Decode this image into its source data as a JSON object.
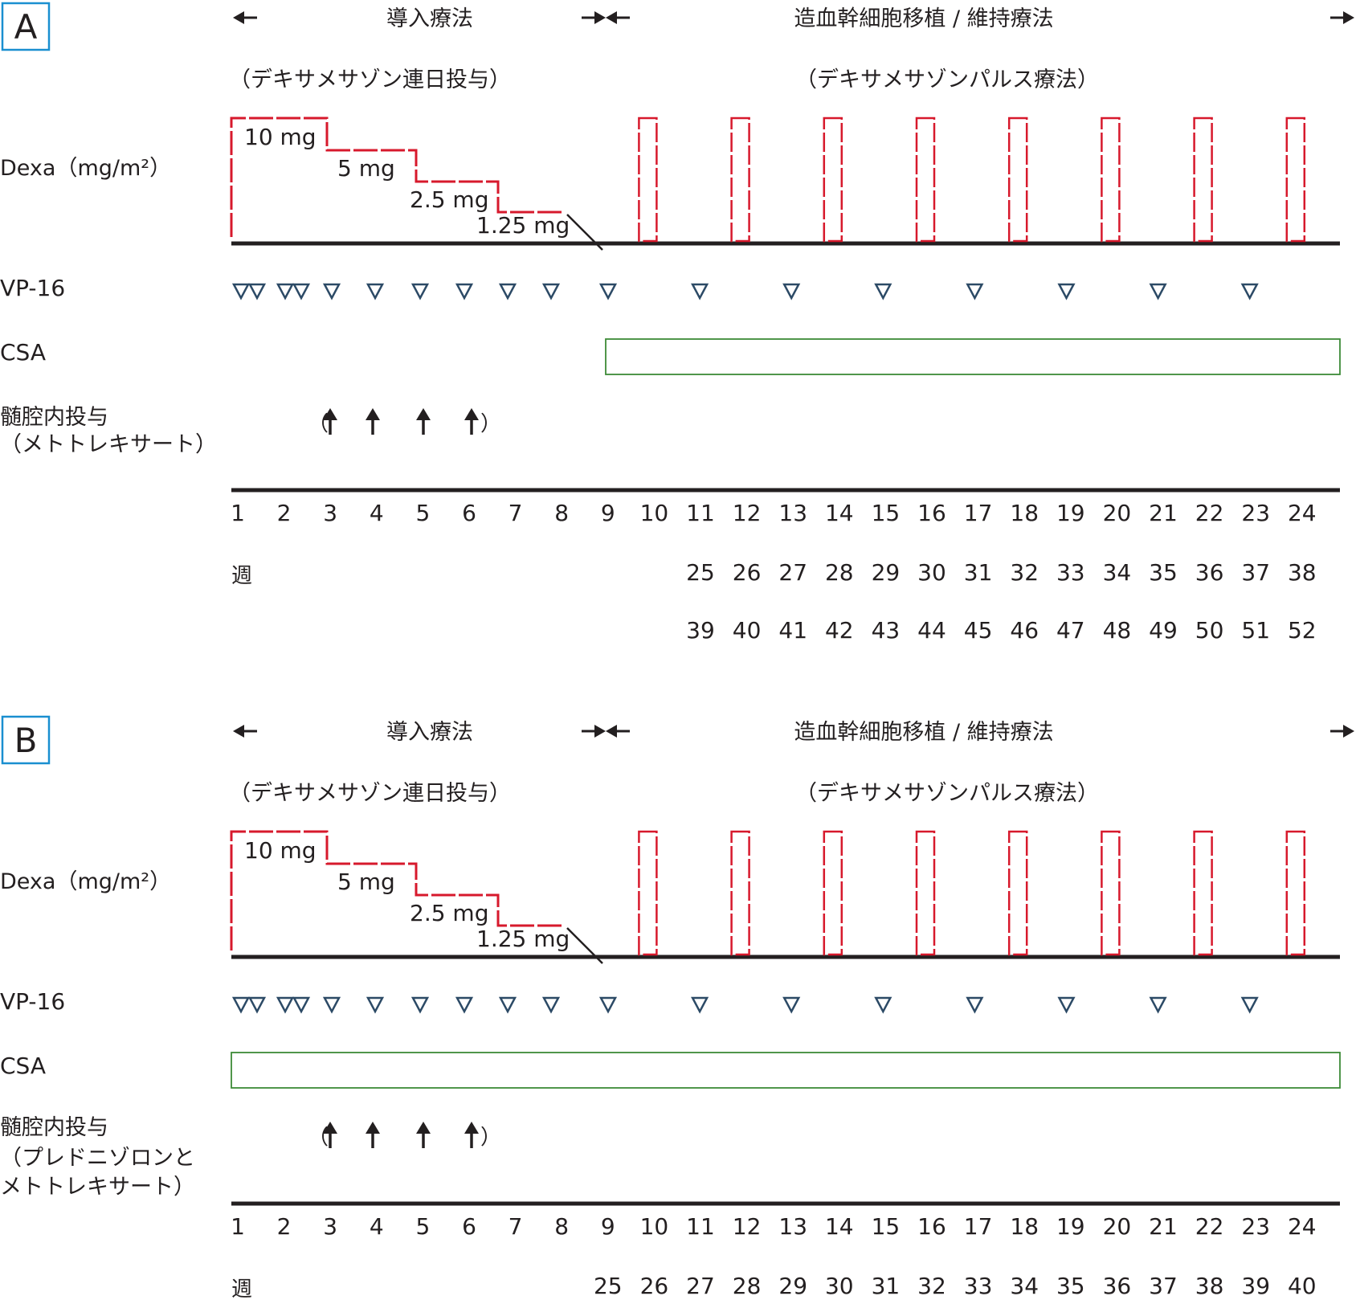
{
  "colors": {
    "text": "#231f20",
    "dexa": "#d7192c",
    "vp16": "#2c4a66",
    "csa": "#3d8b37",
    "panel_label": "#1a8fd0",
    "axis": "#231f20"
  },
  "panels": [
    {
      "key": "A",
      "label": "A",
      "phase_induction": "導入療法",
      "phase_maintenance": "造血幹細胞移植 / 維持療法",
      "sub_induction": "（デキサメサゾン連日投与）",
      "sub_maintenance": "（デキサメサゾンパルス療法）",
      "dexa_label": "Dexa（mg/m²）",
      "dexa_steps": [
        {
          "label": "10 mg",
          "start_week": 1,
          "end_week": 3,
          "level_mg": 10
        },
        {
          "label": "5 mg",
          "start_week": 3,
          "end_week": 5,
          "level_mg": 5
        },
        {
          "label": "2.5 mg",
          "start_week": 5,
          "end_week": 6.8,
          "level_mg": 2.5
        },
        {
          "label": "1.25 mg",
          "start_week": 6.8,
          "end_week": 8.3,
          "level_mg": 1.25
        }
      ],
      "dexa_pulse_weeks": [
        10,
        12,
        14,
        16,
        18,
        20,
        22,
        24
      ],
      "vp16_label": "VP-16",
      "vp16_weeks": [
        1,
        1.35,
        1.95,
        2.3,
        3,
        4,
        5,
        6,
        7,
        8,
        9,
        11,
        13,
        15,
        17,
        19,
        21,
        23
      ],
      "csa_label": "CSA",
      "csa_start_week": 9,
      "it_label_lines": [
        "髄腔内投与",
        "（メトトレキサート）"
      ],
      "it_weeks": [
        3,
        4,
        5,
        6
      ],
      "bracket_open": "（",
      "bracket_close": "）",
      "week_label": "週",
      "week_rows": [
        {
          "start_week": 1,
          "values": [
            "1",
            "2",
            "3",
            "4",
            "5",
            "6",
            "7",
            "8",
            "9",
            "10",
            "11",
            "12",
            "13",
            "14",
            "15",
            "16",
            "17",
            "18",
            "19",
            "20",
            "21",
            "22",
            "23",
            "24"
          ]
        },
        {
          "start_week": 11,
          "values": [
            "25",
            "26",
            "27",
            "28",
            "29",
            "30",
            "31",
            "32",
            "33",
            "34",
            "35",
            "36",
            "37",
            "38"
          ]
        },
        {
          "start_week": 11,
          "values": [
            "39",
            "40",
            "41",
            "42",
            "43",
            "44",
            "45",
            "46",
            "47",
            "48",
            "49",
            "50",
            "51",
            "52"
          ]
        }
      ]
    },
    {
      "key": "B",
      "label": "B",
      "phase_induction": "導入療法",
      "phase_maintenance": "造血幹細胞移植 / 維持療法",
      "sub_induction": "（デキサメサゾン連日投与）",
      "sub_maintenance": "（デキサメサゾンパルス療法）",
      "dexa_label": "Dexa（mg/m²）",
      "dexa_steps": [
        {
          "label": "10 mg",
          "start_week": 1,
          "end_week": 3,
          "level_mg": 10
        },
        {
          "label": "5 mg",
          "start_week": 3,
          "end_week": 5,
          "level_mg": 5
        },
        {
          "label": "2.5 mg",
          "start_week": 5,
          "end_week": 6.8,
          "level_mg": 2.5
        },
        {
          "label": "1.25 mg",
          "start_week": 6.8,
          "end_week": 8.3,
          "level_mg": 1.25
        }
      ],
      "dexa_pulse_weeks": [
        10,
        12,
        14,
        16,
        18,
        20,
        22,
        24
      ],
      "vp16_label": "VP-16",
      "vp16_weeks": [
        1,
        1.35,
        1.95,
        2.3,
        3,
        4,
        5,
        6,
        7,
        8,
        9,
        11,
        13,
        15,
        17,
        19,
        21,
        23
      ],
      "csa_label": "CSA",
      "csa_start_week": 1,
      "it_label_lines": [
        "髄腔内投与",
        "（プレドニゾロンと",
        "メトトレキサート）"
      ],
      "it_weeks": [
        3,
        4,
        5,
        6
      ],
      "bracket_open": "（",
      "bracket_close": "）",
      "week_label": "週",
      "week_rows": [
        {
          "start_week": 1,
          "values": [
            "1",
            "2",
            "3",
            "4",
            "5",
            "6",
            "7",
            "8",
            "9",
            "10",
            "11",
            "12",
            "13",
            "14",
            "15",
            "16",
            "17",
            "18",
            "19",
            "20",
            "21",
            "22",
            "23",
            "24"
          ]
        },
        {
          "start_week": 9,
          "values": [
            "25",
            "26",
            "27",
            "28",
            "29",
            "30",
            "31",
            "32",
            "33",
            "34",
            "35",
            "36",
            "37",
            "38",
            "39",
            "40"
          ]
        }
      ]
    }
  ]
}
